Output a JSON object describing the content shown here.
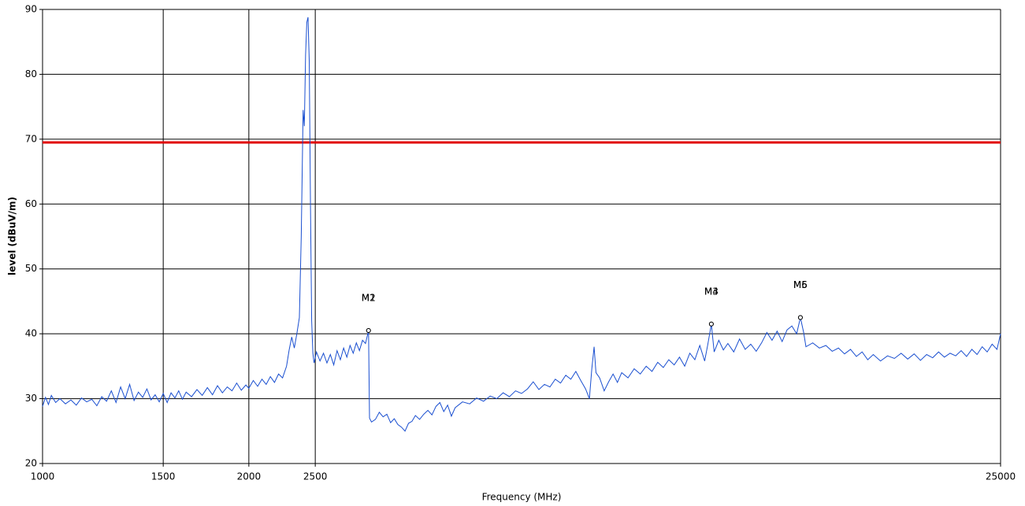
{
  "chart_data": {
    "type": "line",
    "x_label": "Frequency (MHz)",
    "y_label": "level (dBuV/m)",
    "x_log": true,
    "grid": true,
    "xlim": [
      1000,
      25000
    ],
    "xticks": [
      1000,
      1500,
      2000,
      2500,
      25000
    ],
    "ylim": [
      20,
      90
    ],
    "yticks": [
      20,
      30,
      40,
      50,
      60,
      70,
      80,
      90
    ],
    "color": "#1a4fd0",
    "limit_line": {
      "value": 69.5,
      "color": "#e00000"
    },
    "markers": [
      {
        "label": "M1",
        "x": 2990,
        "y": 40.5
      },
      {
        "label": "M2",
        "x": 2990,
        "y": 40.5
      },
      {
        "label": "M3",
        "x": 9460,
        "y": 41.5
      },
      {
        "label": "M4",
        "x": 9460,
        "y": 41.5
      },
      {
        "label": "M5",
        "x": 12760,
        "y": 42.5
      },
      {
        "label": "M6",
        "x": 12760,
        "y": 42.5
      }
    ],
    "x": [
      1000,
      1010,
      1020,
      1030,
      1045,
      1060,
      1080,
      1100,
      1120,
      1140,
      1160,
      1180,
      1200,
      1220,
      1240,
      1260,
      1280,
      1300,
      1320,
      1340,
      1360,
      1380,
      1400,
      1420,
      1440,
      1460,
      1480,
      1500,
      1520,
      1540,
      1560,
      1580,
      1600,
      1620,
      1650,
      1680,
      1710,
      1740,
      1770,
      1800,
      1830,
      1860,
      1890,
      1920,
      1950,
      1980,
      2000,
      2030,
      2060,
      2090,
      2120,
      2150,
      2180,
      2210,
      2240,
      2270,
      2290,
      2310,
      2330,
      2350,
      2370,
      2385,
      2400,
      2410,
      2420,
      2430,
      2440,
      2450,
      2460,
      2470,
      2480,
      2490,
      2510,
      2540,
      2570,
      2600,
      2630,
      2660,
      2690,
      2720,
      2750,
      2780,
      2810,
      2840,
      2870,
      2900,
      2930,
      2960,
      2990,
      3000,
      3020,
      3060,
      3100,
      3140,
      3180,
      3220,
      3260,
      3300,
      3340,
      3380,
      3420,
      3460,
      3500,
      3550,
      3600,
      3650,
      3700,
      3750,
      3800,
      3850,
      3900,
      3950,
      4000,
      4100,
      4200,
      4300,
      4400,
      4500,
      4600,
      4700,
      4800,
      4900,
      5000,
      5100,
      5200,
      5300,
      5400,
      5500,
      5600,
      5700,
      5800,
      5900,
      6000,
      6100,
      6200,
      6280,
      6330,
      6380,
      6420,
      6500,
      6600,
      6700,
      6800,
      6900,
      7000,
      7150,
      7300,
      7450,
      7600,
      7750,
      7900,
      8050,
      8200,
      8350,
      8500,
      8650,
      8800,
      8950,
      9100,
      9250,
      9350,
      9460,
      9550,
      9700,
      9850,
      10000,
      10200,
      10400,
      10600,
      10800,
      11000,
      11200,
      11400,
      11600,
      11800,
      12000,
      12200,
      12400,
      12600,
      12760,
      12900,
      13000,
      13300,
      13600,
      13900,
      14200,
      14500,
      14800,
      15100,
      15400,
      15700,
      16000,
      16300,
      16700,
      17100,
      17500,
      17900,
      18300,
      18700,
      19100,
      19500,
      19900,
      20300,
      20700,
      21100,
      21500,
      21900,
      22300,
      22700,
      23100,
      23500,
      23900,
      24300,
      24700,
      25000
    ],
    "values": [
      28.8,
      30.2,
      29.1,
      30.5,
      29.4,
      30.0,
      29.2,
      29.8,
      29.0,
      30.1,
      29.5,
      29.9,
      28.9,
      30.3,
      29.6,
      31.2,
      29.4,
      31.8,
      30.0,
      32.2,
      29.7,
      31.0,
      30.2,
      31.5,
      29.8,
      30.6,
      29.5,
      30.8,
      29.4,
      30.9,
      30.1,
      31.2,
      29.9,
      31.0,
      30.3,
      31.4,
      30.5,
      31.7,
      30.6,
      32.0,
      30.9,
      31.8,
      31.2,
      32.4,
      31.3,
      32.1,
      31.6,
      32.8,
      31.9,
      33.0,
      32.2,
      33.4,
      32.5,
      33.8,
      33.2,
      35.0,
      37.5,
      39.5,
      37.8,
      40.0,
      42.5,
      55.0,
      74.5,
      72.0,
      83.0,
      88.0,
      88.8,
      82.0,
      60.0,
      42.0,
      37.0,
      35.5,
      37.2,
      35.8,
      37.0,
      35.5,
      36.8,
      35.2,
      37.4,
      36.0,
      37.8,
      36.4,
      38.2,
      37.0,
      38.6,
      37.4,
      39.0,
      38.5,
      40.5,
      27.0,
      26.4,
      26.8,
      27.9,
      27.2,
      27.6,
      26.3,
      26.9,
      26.0,
      25.6,
      25.0,
      26.2,
      26.5,
      27.4,
      26.8,
      27.6,
      28.2,
      27.5,
      28.8,
      29.4,
      28.0,
      29.0,
      27.3,
      28.6,
      29.5,
      29.2,
      30.1,
      29.6,
      30.4,
      30.0,
      30.9,
      30.3,
      31.2,
      30.8,
      31.5,
      32.6,
      31.4,
      32.2,
      31.8,
      33.0,
      32.4,
      33.6,
      33.0,
      34.2,
      32.8,
      31.5,
      30.0,
      34.5,
      38.0,
      34.0,
      33.2,
      31.2,
      32.6,
      33.8,
      32.5,
      34.0,
      33.2,
      34.6,
      33.8,
      35.0,
      34.2,
      35.6,
      34.8,
      36.0,
      35.2,
      36.4,
      35.0,
      37.0,
      36.0,
      38.2,
      35.8,
      38.4,
      41.5,
      37.2,
      39.0,
      37.5,
      38.5,
      37.2,
      39.2,
      37.6,
      38.4,
      37.3,
      38.6,
      40.2,
      39.0,
      40.4,
      38.8,
      40.6,
      41.2,
      40.0,
      42.5,
      40.2,
      38.0,
      38.6,
      37.8,
      38.2,
      37.3,
      37.8,
      36.9,
      37.6,
      36.5,
      37.2,
      36.0,
      36.8,
      35.8,
      36.6,
      36.2,
      37.0,
      36.1,
      36.9,
      35.9,
      36.8,
      36.3,
      37.2,
      36.4,
      37.0,
      36.6,
      37.4,
      36.5,
      37.6,
      36.8,
      38.0,
      37.2,
      38.4,
      37.6,
      40.0
    ]
  }
}
